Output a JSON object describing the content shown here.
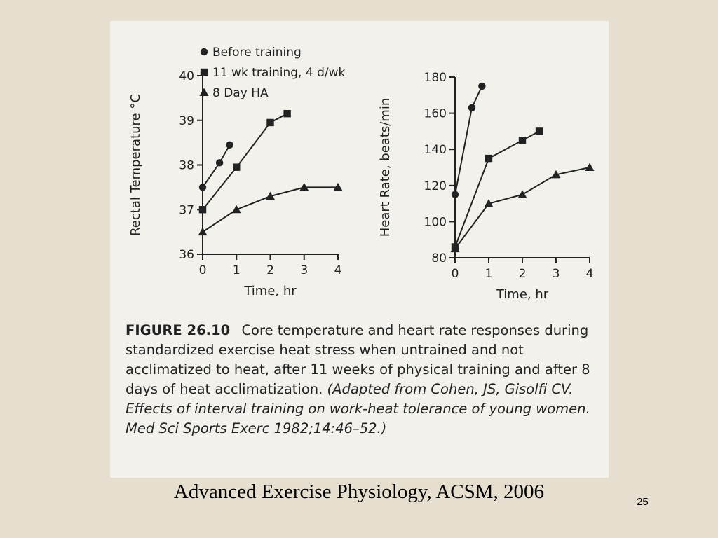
{
  "chart_data": [
    {
      "type": "line",
      "title": "",
      "xlabel": "Time, hr",
      "ylabel": "Rectal Temperature °C",
      "xlim": [
        0,
        4
      ],
      "ylim": [
        36,
        40
      ],
      "x_ticks": [
        "0",
        "1",
        "2",
        "3",
        "4"
      ],
      "y_ticks": [
        "36",
        "37",
        "38",
        "39",
        "40"
      ],
      "grid": false,
      "series": [
        {
          "name": "Before training",
          "marker": "circle",
          "x": [
            0,
            0.5,
            0.8
          ],
          "y": [
            37.5,
            38.05,
            38.45
          ]
        },
        {
          "name": "11 wk training, 4 d/wk",
          "marker": "square",
          "x": [
            0,
            1,
            2,
            2.5
          ],
          "y": [
            37.0,
            37.95,
            38.95,
            39.15
          ]
        },
        {
          "name": "8 Day HA",
          "marker": "triangle",
          "x": [
            0,
            1,
            2,
            3,
            4
          ],
          "y": [
            36.5,
            37.0,
            37.3,
            37.5,
            37.5
          ]
        }
      ]
    },
    {
      "type": "line",
      "title": "",
      "xlabel": "Time, hr",
      "ylabel": "Heart Rate, beats/min",
      "xlim": [
        0,
        4
      ],
      "ylim": [
        80,
        180
      ],
      "x_ticks": [
        "0",
        "1",
        "2",
        "3",
        "4"
      ],
      "y_ticks": [
        "80",
        "100",
        "120",
        "140",
        "160",
        "180"
      ],
      "grid": false,
      "series": [
        {
          "name": "Before training",
          "marker": "circle",
          "x": [
            0,
            0.5,
            0.8
          ],
          "y": [
            115,
            163,
            175
          ]
        },
        {
          "name": "11 wk training, 4 d/wk",
          "marker": "square",
          "x": [
            0,
            1,
            2,
            2.5
          ],
          "y": [
            86,
            135,
            145,
            150
          ]
        },
        {
          "name": "8 Day HA",
          "marker": "triangle",
          "x": [
            0,
            1,
            2,
            3,
            4
          ],
          "y": [
            85,
            110,
            115,
            126,
            130
          ]
        }
      ]
    }
  ],
  "legend": {
    "items": [
      {
        "label": "Before training",
        "marker": "circle"
      },
      {
        "label": "11 wk training, 4 d/wk",
        "marker": "square"
      },
      {
        "label": "8 Day HA",
        "marker": "triangle"
      }
    ]
  },
  "caption": {
    "figure_number": "FIGURE 26.10",
    "text": "Core temperature and heart rate responses during standardized exercise heat stress when untrained and not acclimatized to heat, after 11 weeks of physical training and after 8 days of heat acclimatization.",
    "citation": "(Adapted from Cohen, JS, Gisolfi CV. Effects of interval training on work-heat tolerance of young women. Med Sci Sports Exerc 1982;14:46–52.)"
  },
  "source_line": "Advanced Exercise Physiology, ACSM, 2006",
  "slide_number": "25",
  "colors": {
    "slide_background": "#e6dfcf",
    "scan_background": "#f2f1ec",
    "ink": "#222222"
  }
}
